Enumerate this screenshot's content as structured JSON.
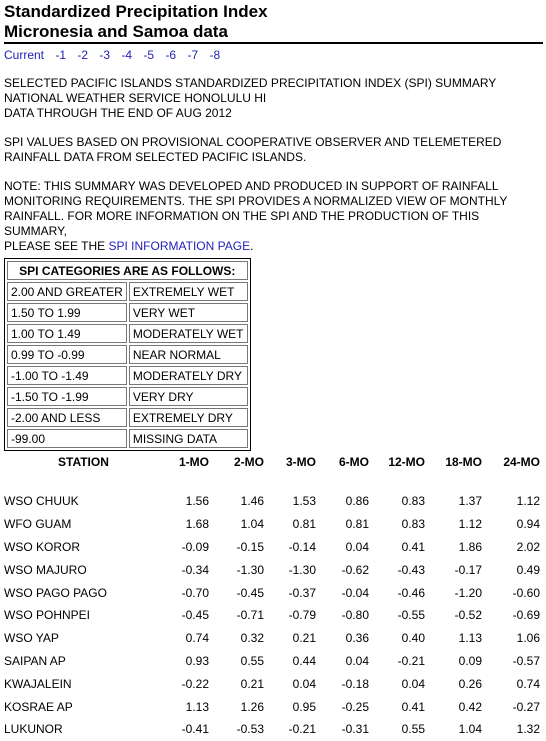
{
  "title_line1": "Standardized Precipitation Index",
  "title_line2": "Micronesia and Samoa data",
  "nav": [
    "Current",
    "-1",
    "-2",
    "-3",
    "-4",
    "-5",
    "-6",
    "-7",
    "-8"
  ],
  "intro": [
    "SELECTED PACIFIC ISLANDS STANDARDIZED PRECIPITATION INDEX (SPI) SUMMARY",
    "NATIONAL WEATHER SERVICE HONOLULU HI",
    "DATA THROUGH THE END OF AUG 2012"
  ],
  "basis": [
    "SPI VALUES BASED ON PROVISIONAL COOPERATIVE OBSERVER AND TELEMETERED",
    "RAINFALL DATA FROM SELECTED PACIFIC ISLANDS."
  ],
  "note": [
    "NOTE: THIS SUMMARY WAS DEVELOPED AND PRODUCED IN SUPPORT OF RAINFALL",
    "MONITORING REQUIREMENTS. THE SPI PROVIDES A NORMALIZED VIEW OF MONTHLY",
    "RAINFALL. FOR MORE INFORMATION ON THE SPI AND THE PRODUCTION OF THIS SUMMARY,"
  ],
  "note_last_prefix": "PLEASE SEE THE ",
  "note_link": "SPI INFORMATION PAGE",
  "note_last_suffix": ".",
  "categories_header": "SPI CATEGORIES ARE AS FOLLOWS:",
  "categories": [
    [
      "2.00 AND GREATER",
      "EXTREMELY WET"
    ],
    [
      "1.50 TO 1.99",
      "VERY WET"
    ],
    [
      "1.00 TO 1.49",
      "MODERATELY WET"
    ],
    [
      "0.99 TO -0.99",
      "NEAR NORMAL"
    ],
    [
      "-1.00 TO -1.49",
      "MODERATELY DRY"
    ],
    [
      "-1.50 TO -1.99",
      "VERY DRY"
    ],
    [
      "-2.00 AND LESS",
      "EXTREMELY DRY"
    ],
    [
      "-99.00",
      "MISSING DATA"
    ]
  ],
  "columns": [
    "STATION",
    "1-MO",
    "2-MO",
    "3-MO",
    "6-MO",
    "12-MO",
    "18-MO",
    "24-MO"
  ],
  "stations": [
    [
      "WSO CHUUK",
      "1.56",
      "1.46",
      "1.53",
      "0.86",
      "0.83",
      "1.37",
      "1.12"
    ],
    [
      "WFO GUAM",
      "1.68",
      "1.04",
      "0.81",
      "0.81",
      "0.83",
      "1.12",
      "0.94"
    ],
    [
      "WSO KOROR",
      "-0.09",
      "-0.15",
      "-0.14",
      "0.04",
      "0.41",
      "1.86",
      "2.02"
    ],
    [
      "WSO MAJURO",
      "-0.34",
      "-1.30",
      "-1.30",
      "-0.62",
      "-0.43",
      "-0.17",
      "0.49"
    ],
    [
      "WSO PAGO PAGO",
      "-0.70",
      "-0.45",
      "-0.37",
      "-0.04",
      "-0.46",
      "-1.20",
      "-0.60"
    ],
    [
      "WSO POHNPEI",
      "-0.45",
      "-0.71",
      "-0.79",
      "-0.80",
      "-0.55",
      "-0.52",
      "-0.69"
    ],
    [
      "WSO YAP",
      "0.74",
      "0.32",
      "0.21",
      "0.36",
      "0.40",
      "1.13",
      "1.06"
    ],
    [
      "SAIPAN AP",
      "0.93",
      "0.55",
      "0.44",
      "0.04",
      "-0.21",
      "0.09",
      "-0.57"
    ],
    [
      "KWAJALEIN",
      "-0.22",
      "0.21",
      "0.04",
      "-0.18",
      "0.04",
      "0.26",
      "0.74"
    ],
    [
      "KOSRAE AP",
      "1.13",
      "1.26",
      "0.95",
      "-0.25",
      "0.41",
      "0.42",
      "-0.27"
    ],
    [
      "LUKUNOR",
      "-0.41",
      "-0.53",
      "-0.21",
      "-0.31",
      "0.55",
      "1.04",
      "1.32"
    ]
  ]
}
